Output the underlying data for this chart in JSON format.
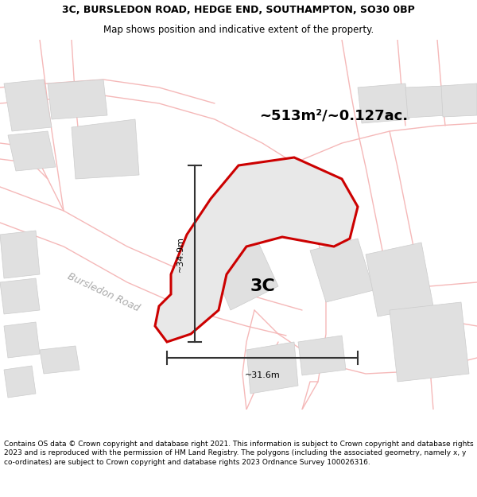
{
  "title_line1": "3C, BURSLEDON ROAD, HEDGE END, SOUTHAMPTON, SO30 0BP",
  "title_line2": "Map shows position and indicative extent of the property.",
  "area_label": "~513m²/~0.127ac.",
  "property_label": "3C",
  "dim_vertical": "~34.9m",
  "dim_horizontal": "~31.6m",
  "road_label": "Bursledon Road",
  "footer": "Contains OS data © Crown copyright and database right 2021. This information is subject to Crown copyright and database rights 2023 and is reproduced with the permission of HM Land Registry. The polygons (including the associated geometry, namely x, y co-ordinates) are subject to Crown copyright and database rights 2023 Ordnance Survey 100026316.",
  "map_bg": "#ffffff",
  "property_fill": "#e8e8e8",
  "property_edge": "#cc0000",
  "road_outline_color": "#f5b8b8",
  "building_fill": "#e0e0e0",
  "building_edge": "#cccccc",
  "dim_color": "#333333",
  "road_label_color": "#aaaaaa",
  "title_fontsize": 9,
  "subtitle_fontsize": 8.5,
  "footer_fontsize": 6.5,
  "label_3c_fontsize": 16,
  "area_fontsize": 13,
  "dim_fontsize": 8
}
